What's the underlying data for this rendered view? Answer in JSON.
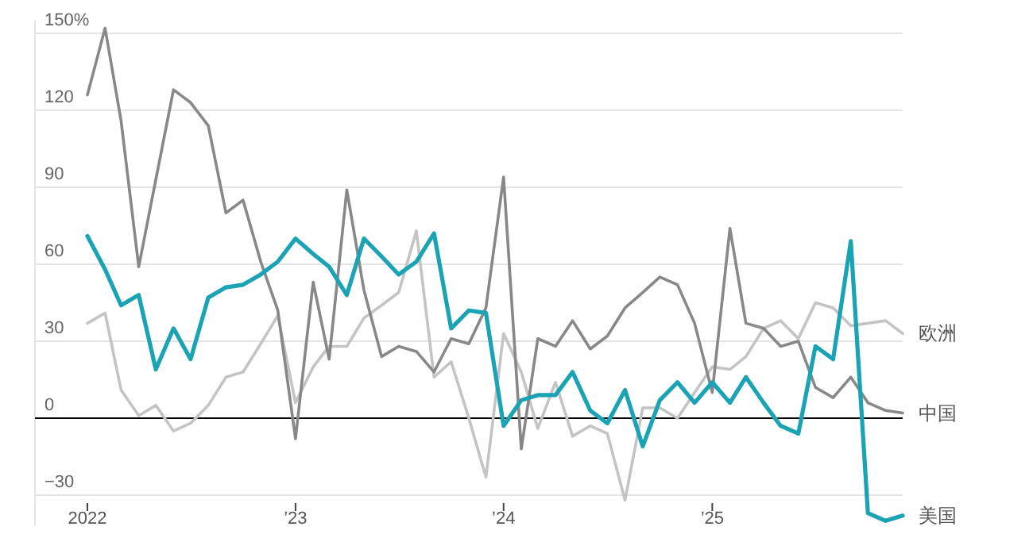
{
  "chart_data": {
    "type": "line",
    "x": [
      "2022-01",
      "2022-02",
      "2022-03",
      "2022-04",
      "2022-05",
      "2022-06",
      "2022-07",
      "2022-08",
      "2022-09",
      "2022-10",
      "2022-11",
      "2022-12",
      "2023-01",
      "2023-02",
      "2023-03",
      "2023-04",
      "2023-05",
      "2023-06",
      "2023-07",
      "2023-08",
      "2023-09",
      "2023-10",
      "2023-11",
      "2023-12",
      "2024-01",
      "2024-02",
      "2024-03",
      "2024-04",
      "2024-05",
      "2024-06",
      "2024-07",
      "2024-08",
      "2024-09",
      "2024-10",
      "2024-11",
      "2024-12",
      "2025-01",
      "2025-02",
      "2025-03",
      "2025-04",
      "2025-05",
      "2025-06",
      "2025-07",
      "2025-08",
      "2025-09",
      "2025-10",
      "2025-11",
      "2025-12"
    ],
    "series": [
      {
        "name": "欧洲",
        "color": "#c4c4c4",
        "values": [
          37,
          41,
          11,
          1,
          5,
          -5,
          -2,
          5,
          16,
          18,
          29,
          40,
          6,
          20,
          28,
          28,
          39,
          44,
          49,
          73,
          16,
          22,
          0,
          -23,
          33,
          18,
          -4,
          14,
          -7,
          -3,
          -6,
          -32,
          4,
          4,
          0,
          10,
          20,
          19,
          24,
          35,
          38,
          31,
          45,
          43,
          36,
          37,
          38,
          33
        ]
      },
      {
        "name": "中国",
        "color": "#888888",
        "values": [
          126,
          152,
          116,
          59,
          93,
          128,
          123,
          114,
          80,
          85,
          61,
          42,
          -8,
          53,
          23,
          89,
          50,
          24,
          28,
          26,
          18,
          31,
          29,
          43,
          94,
          -12,
          31,
          28,
          38,
          27,
          32,
          43,
          49,
          55,
          52,
          37,
          10,
          74,
          37,
          35,
          28,
          30,
          12,
          8,
          16,
          6,
          3,
          2
        ]
      },
      {
        "name": "美国",
        "color": "#1aa3b5",
        "values": [
          71,
          58,
          44,
          48,
          19,
          35,
          23,
          47,
          51,
          52,
          56,
          61,
          70,
          64,
          59,
          48,
          70,
          63,
          56,
          61,
          72,
          35,
          42,
          41,
          -3,
          7,
          9,
          9,
          18,
          3,
          -2,
          11,
          -11,
          7,
          14,
          6,
          14,
          6,
          16,
          6,
          -3,
          -6,
          28,
          23,
          69,
          -37,
          -40,
          -38
        ]
      }
    ],
    "xlim": [
      "2021-10",
      "2025-12"
    ],
    "xticks": [
      {
        "value": "2022-01",
        "label": "2022"
      },
      {
        "value": "2023-01",
        "label": "’23"
      },
      {
        "value": "2024-01",
        "label": "’24"
      },
      {
        "value": "2025-01",
        "label": "’25"
      }
    ],
    "ylim": [
      -42,
      155
    ],
    "yticks": [
      {
        "value": -30,
        "label": "−30"
      },
      0,
      30,
      60,
      90,
      120,
      {
        "value": 150,
        "label": "150%"
      }
    ],
    "grid": "y",
    "legend": false,
    "ref_lines": [
      {
        "axis": "y",
        "value": 0,
        "color": "#000000"
      }
    ]
  }
}
